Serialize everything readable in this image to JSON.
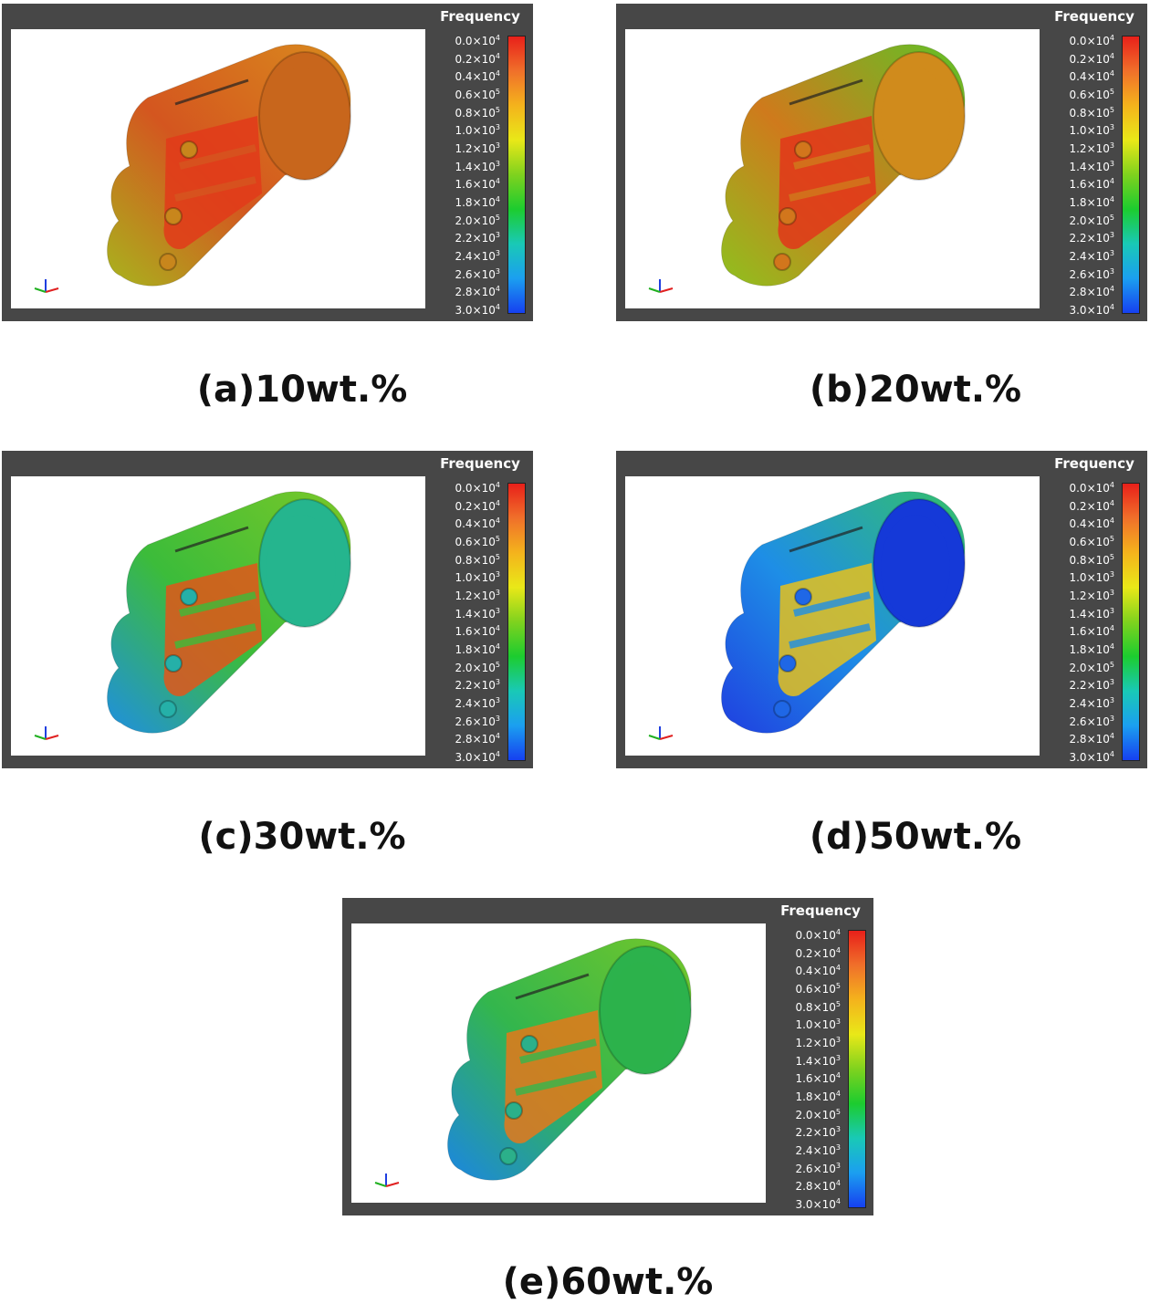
{
  "legend_title": "Frequency",
  "legend_ticks": [
    {
      "m": "0.0×10",
      "e": "4"
    },
    {
      "m": "0.2×10",
      "e": "4"
    },
    {
      "m": "0.4×10",
      "e": "4"
    },
    {
      "m": "0.6×10",
      "e": "5"
    },
    {
      "m": "0.8×10",
      "e": "5"
    },
    {
      "m": "1.0×10",
      "e": "3"
    },
    {
      "m": "1.2×10",
      "e": "3"
    },
    {
      "m": "1.4×10",
      "e": "3"
    },
    {
      "m": "1.6×10",
      "e": "4"
    },
    {
      "m": "1.8×10",
      "e": "4"
    },
    {
      "m": "2.0×10",
      "e": "5"
    },
    {
      "m": "2.2×10",
      "e": "3"
    },
    {
      "m": "2.4×10",
      "e": "3"
    },
    {
      "m": "2.6×10",
      "e": "3"
    },
    {
      "m": "2.8×10",
      "e": "4"
    },
    {
      "m": "3.0×10",
      "e": "4"
    }
  ],
  "colorbar_colors": [
    "#e8201a",
    "#f0702a",
    "#f4b31c",
    "#e9e818",
    "#7fd21e",
    "#1ccc2f",
    "#19c9b6",
    "#1b9ff0",
    "#1640f0"
  ],
  "panels": [
    {
      "caption": "(a)10wt.%",
      "body": "#d4561f",
      "hi": "#e23a1a",
      "ring": "#c8661c",
      "low": "#a8b41e",
      "low2": "#c8861c",
      "accent": "#d98b1d"
    },
    {
      "caption": "(b)20wt.%",
      "body": "#cf7a1c",
      "hi": "#e2361a",
      "ring": "#d08b1c",
      "low": "#8ec11f",
      "low2": "#d2761c",
      "accent": "#60c226"
    },
    {
      "caption": "(c)30wt.%",
      "body": "#3cbc3a",
      "hi": "#e2561a",
      "ring": "#25b58e",
      "low": "#1f8fe0",
      "low2": "#25b0a8",
      "accent": "#79c828"
    },
    {
      "caption": "(d)50wt.%",
      "body": "#1e8ee6",
      "hi": "#e6c11c",
      "ring": "#1539d8",
      "low": "#1f3fe0",
      "low2": "#1f67e6",
      "accent": "#33c06a"
    },
    {
      "caption": "(e)60wt.%",
      "body": "#33b64d",
      "hi": "#e5781a",
      "ring": "#2cb24c",
      "low": "#1b86e2",
      "low2": "#2bb08a",
      "accent": "#73c72a"
    }
  ]
}
